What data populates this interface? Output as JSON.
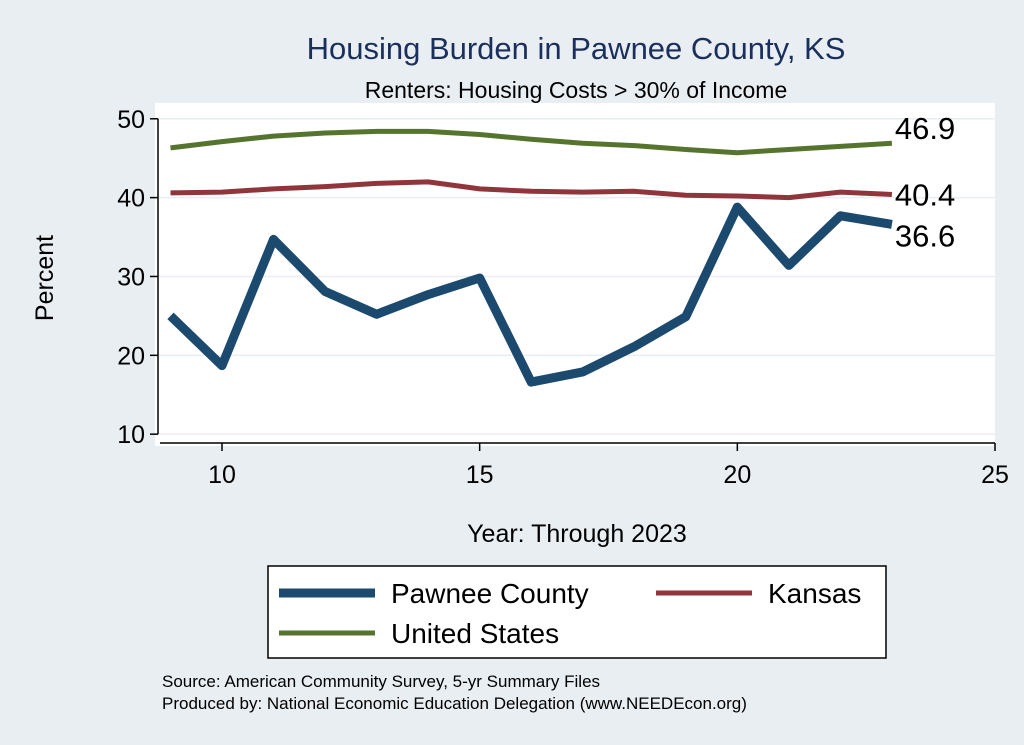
{
  "chart_data": {
    "type": "line",
    "title": "Housing Burden in Pawnee County, KS",
    "subtitle": "Renters: Housing Costs > 30% of Income",
    "xlabel": "Year: Through 2023",
    "ylabel": "Percent",
    "xlim": [
      8.7,
      25
    ],
    "ylim": [
      8.5,
      52
    ],
    "xticks": [
      10,
      15,
      20,
      25
    ],
    "yticks": [
      10,
      20,
      30,
      40,
      50
    ],
    "grid": true,
    "legend_position": "bottom",
    "series": [
      {
        "name": "Pawnee County",
        "color": "#1c4a6e",
        "width": 9,
        "x": [
          9,
          10,
          11,
          12,
          13,
          14,
          15,
          16,
          17,
          18,
          19,
          20,
          21,
          22,
          23
        ],
        "values": [
          25.0,
          18.7,
          34.7,
          28.1,
          25.2,
          27.7,
          29.8,
          16.6,
          17.9,
          21.1,
          24.9,
          38.8,
          31.4,
          37.7,
          36.6
        ],
        "end_label": "36.6"
      },
      {
        "name": "Kansas",
        "color": "#90353b",
        "width": 5,
        "x": [
          9,
          10,
          11,
          12,
          13,
          14,
          15,
          16,
          17,
          18,
          19,
          20,
          21,
          22,
          23
        ],
        "values": [
          40.6,
          40.7,
          41.1,
          41.4,
          41.8,
          42.0,
          41.1,
          40.8,
          40.7,
          40.8,
          40.3,
          40.2,
          40.0,
          40.7,
          40.4
        ],
        "end_label": "40.4"
      },
      {
        "name": "United States",
        "color": "#55752f",
        "width": 5,
        "x": [
          9,
          10,
          11,
          12,
          13,
          14,
          15,
          16,
          17,
          18,
          19,
          20,
          21,
          22,
          23
        ],
        "values": [
          46.3,
          47.1,
          47.8,
          48.2,
          48.4,
          48.4,
          48.0,
          47.4,
          46.9,
          46.6,
          46.1,
          45.7,
          46.1,
          46.5,
          46.9
        ],
        "end_label": "46.9"
      }
    ],
    "legend_order": [
      0,
      1,
      2
    ],
    "notes": [
      "Source: American Community Survey, 5-yr Summary Files",
      "Produced by: National Economic Education Delegation (www.NEEDEcon.org)"
    ]
  }
}
